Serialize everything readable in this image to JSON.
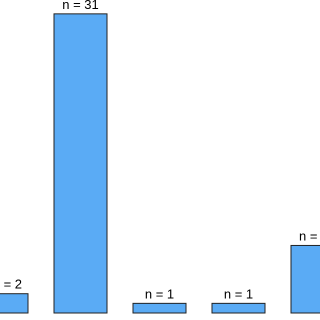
{
  "chart_data": {
    "type": "bar",
    "values": [
      2,
      31,
      1,
      1,
      7
    ],
    "value_labels": [
      "= 2",
      "n = 31",
      "n = 1",
      "n = 1",
      "n ="
    ],
    "color": "#5aabf5"
  }
}
